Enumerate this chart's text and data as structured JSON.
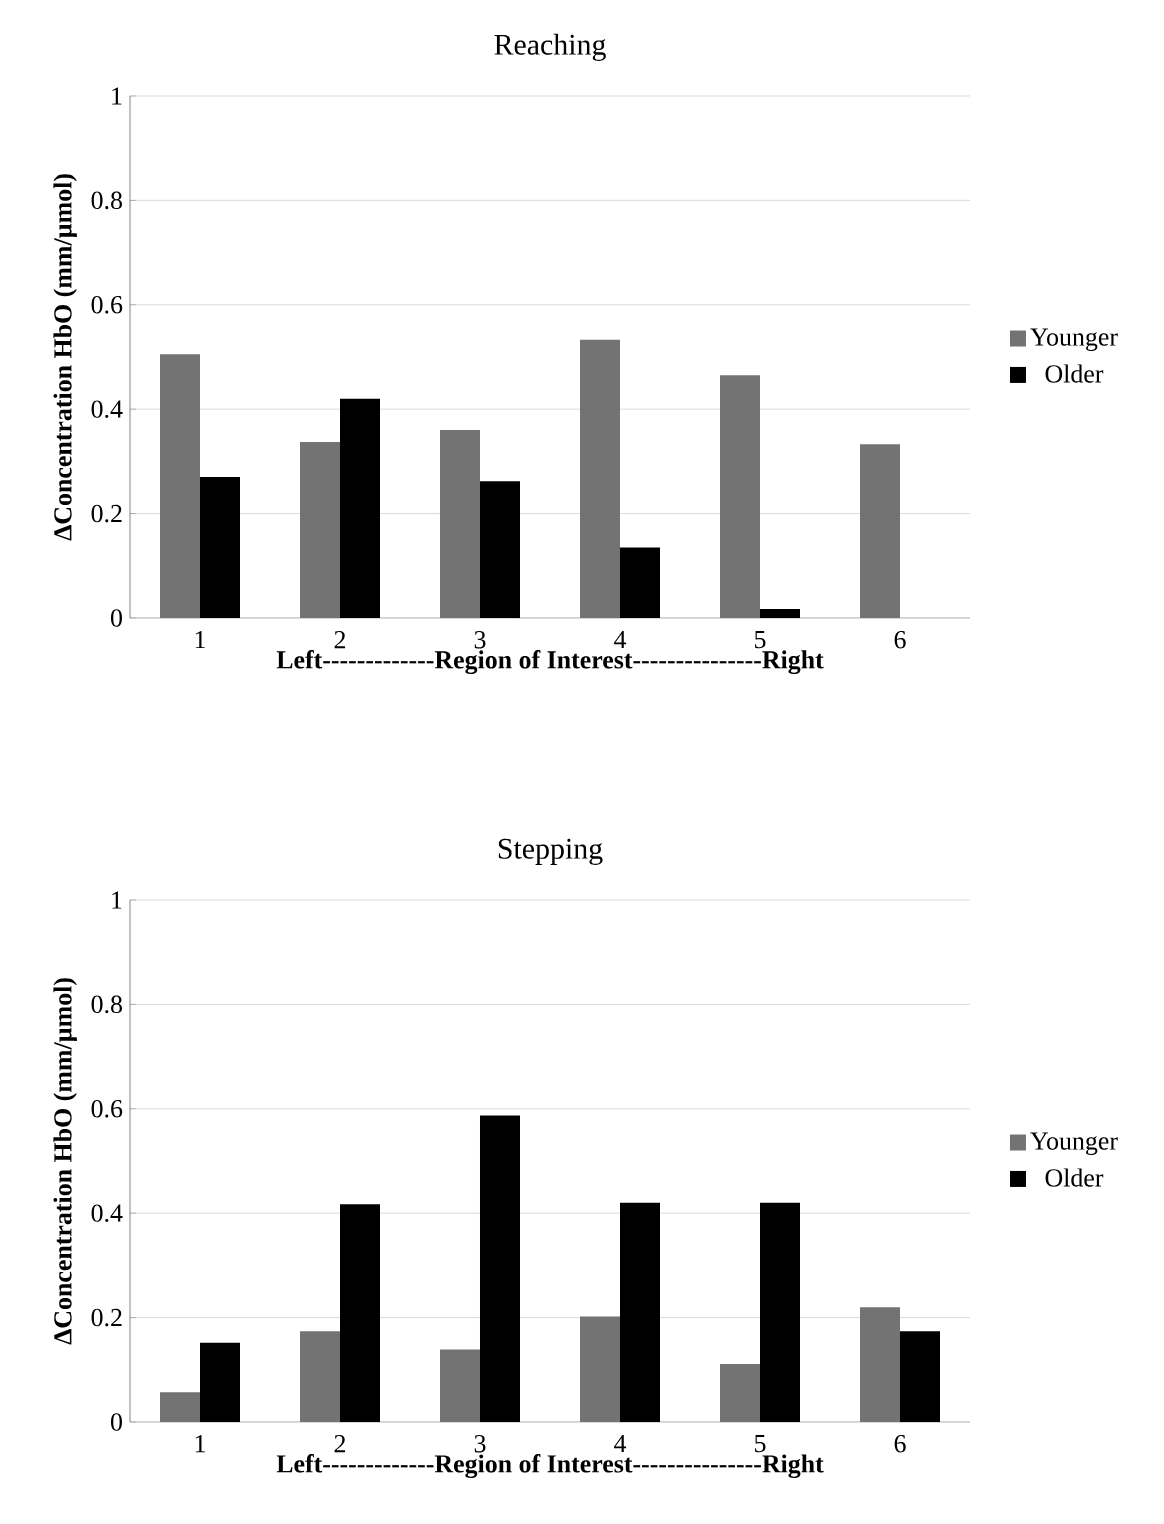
{
  "chart_data": [
    {
      "type": "bar",
      "title": "Reaching",
      "xlabel": "Left-------------Region of Interest---------------Right",
      "ylabel": "ΔConcentration HbO (mm/µmol)",
      "categories": [
        "1",
        "2",
        "3",
        "4",
        "5",
        "6"
      ],
      "series": [
        {
          "name": "Younger",
          "color": "#737373",
          "values": [
            0.505,
            0.337,
            0.36,
            0.533,
            0.465,
            0.333
          ]
        },
        {
          "name": "Older",
          "color": "#000000",
          "values": [
            0.27,
            0.42,
            0.262,
            0.135,
            0.017,
            null
          ]
        }
      ],
      "ylim": [
        0,
        1
      ],
      "yticks": [
        0,
        0.2,
        0.4,
        0.6,
        0.8,
        1
      ],
      "grid": "y",
      "legend": "right"
    },
    {
      "type": "bar",
      "title": "Stepping",
      "xlabel": "Left-------------Region of Interest---------------Right",
      "ylabel": "ΔConcentration HbO (mm/µmol)",
      "categories": [
        "1",
        "2",
        "3",
        "4",
        "5",
        "6"
      ],
      "series": [
        {
          "name": "Younger",
          "color": "#737373",
          "values": [
            0.057,
            0.174,
            0.139,
            0.202,
            0.111,
            0.22
          ]
        },
        {
          "name": "Older",
          "color": "#000000",
          "values": [
            0.152,
            0.417,
            0.587,
            0.42,
            0.42,
            0.174
          ]
        }
      ],
      "ylim": [
        0,
        1
      ],
      "yticks": [
        0,
        0.2,
        0.4,
        0.6,
        0.8,
        1
      ],
      "grid": "y",
      "legend": "right"
    }
  ]
}
